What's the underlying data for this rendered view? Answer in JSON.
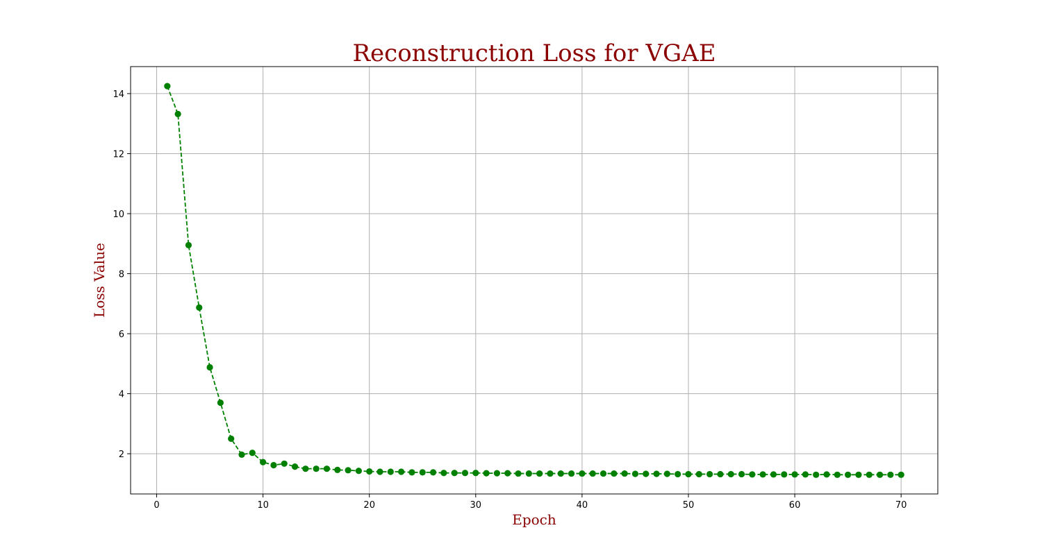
{
  "chart_data": {
    "type": "line",
    "title": "Reconstruction Loss for VGAE",
    "xlabel": "Epoch",
    "ylabel": "Loss Value",
    "xlim": [
      -2.45,
      73.45
    ],
    "ylim": [
      0.66,
      14.9
    ],
    "x_ticks": [
      0,
      10,
      20,
      30,
      40,
      50,
      60,
      70
    ],
    "y_ticks": [
      2,
      4,
      6,
      8,
      10,
      12,
      14
    ],
    "grid": true,
    "line_style": "dashed",
    "marker": "circle",
    "color": "#008000",
    "series": [
      {
        "x": [
          1,
          2,
          3,
          4,
          5,
          6,
          7,
          8,
          9,
          10,
          11,
          12,
          13,
          14,
          15,
          16,
          17,
          18,
          19,
          20,
          21,
          22,
          23,
          24,
          25,
          26,
          27,
          28,
          29,
          30,
          31,
          32,
          33,
          34,
          35,
          36,
          37,
          38,
          39,
          40,
          41,
          42,
          43,
          44,
          45,
          46,
          47,
          48,
          49,
          50,
          51,
          52,
          53,
          54,
          55,
          56,
          57,
          58,
          59,
          60,
          61,
          62,
          63,
          64,
          65,
          66,
          67,
          68,
          69,
          70
        ],
        "values": [
          14.25,
          13.32,
          8.95,
          6.87,
          4.88,
          3.7,
          2.5,
          1.97,
          2.03,
          1.72,
          1.62,
          1.67,
          1.57,
          1.5,
          1.5,
          1.5,
          1.46,
          1.45,
          1.43,
          1.41,
          1.4,
          1.4,
          1.4,
          1.38,
          1.38,
          1.38,
          1.36,
          1.36,
          1.36,
          1.36,
          1.35,
          1.35,
          1.35,
          1.34,
          1.34,
          1.34,
          1.34,
          1.34,
          1.34,
          1.34,
          1.34,
          1.34,
          1.34,
          1.34,
          1.33,
          1.33,
          1.33,
          1.33,
          1.32,
          1.32,
          1.32,
          1.32,
          1.32,
          1.32,
          1.32,
          1.31,
          1.31,
          1.31,
          1.31,
          1.31,
          1.31,
          1.3,
          1.31,
          1.3,
          1.3,
          1.3,
          1.3,
          1.3,
          1.3,
          1.3
        ]
      }
    ]
  }
}
